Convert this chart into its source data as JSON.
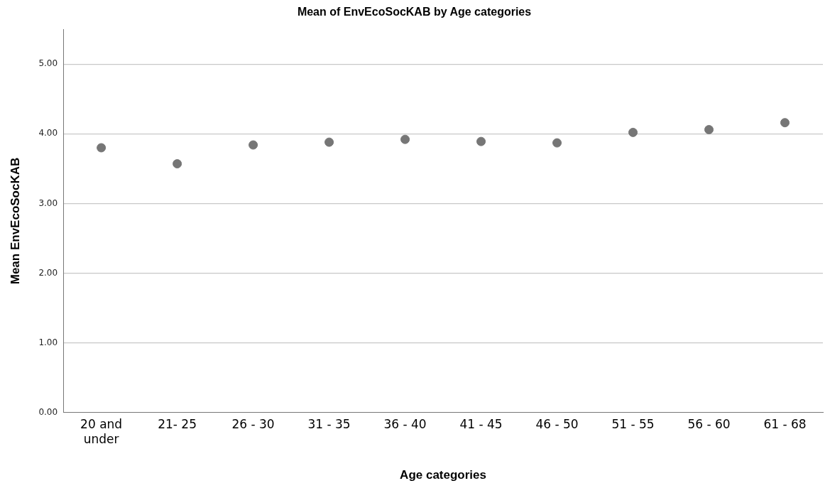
{
  "chart_data": {
    "type": "scatter",
    "title": "Mean of EnvEcoSocKAB by Age categories",
    "xlabel": "Age categories",
    "ylabel": "Mean EnvEcoSocKAB",
    "categories": [
      "20 and under",
      "21- 25",
      "26 - 30",
      "31 - 35",
      "36 - 40",
      "41 - 45",
      "46 - 50",
      "51 - 55",
      "56 - 60",
      "61 - 68"
    ],
    "values": [
      3.8,
      3.57,
      3.84,
      3.88,
      3.92,
      3.89,
      3.87,
      4.02,
      4.06,
      4.16
    ],
    "color": "#767676",
    "marker": "circle",
    "ylim": [
      0,
      5.5
    ],
    "yticks": [
      {
        "value": 0,
        "label": "0.00"
      },
      {
        "value": 1,
        "label": "1.00"
      },
      {
        "value": 2,
        "label": "2.00"
      },
      {
        "value": 3,
        "label": "3.00"
      },
      {
        "value": 4,
        "label": "4.00"
      },
      {
        "value": 5,
        "label": "5.00"
      }
    ],
    "grid": "y",
    "legend": false
  }
}
